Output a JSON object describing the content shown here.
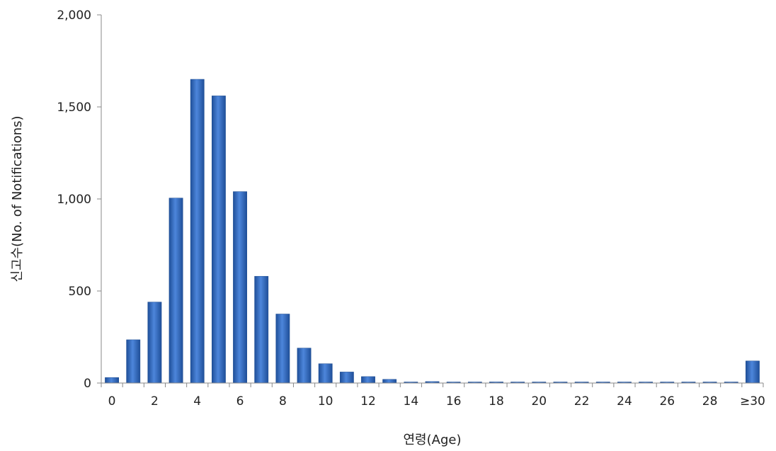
{
  "chart_data": {
    "type": "bar",
    "title": "",
    "xlabel": "연령(Age)",
    "ylabel": "신고수(No. of Notifications)",
    "ylim": [
      0,
      2000
    ],
    "yticks": [
      "0",
      "500",
      "1,000",
      "1,500",
      "2,000"
    ],
    "grid": false,
    "bar_color": "#3a73c9",
    "categories": [
      "0",
      "1",
      "2",
      "3",
      "4",
      "5",
      "6",
      "7",
      "8",
      "9",
      "10",
      "11",
      "12",
      "13",
      "14",
      "15",
      "16",
      "17",
      "18",
      "19",
      "20",
      "21",
      "22",
      "23",
      "24",
      "25",
      "26",
      "27",
      "28",
      "29",
      "≥30"
    ],
    "xtick_labels": [
      "0",
      "",
      "2",
      "",
      "4",
      "",
      "6",
      "",
      "8",
      "",
      "10",
      "",
      "12",
      "",
      "14",
      "",
      "16",
      "",
      "18",
      "",
      "20",
      "",
      "22",
      "",
      "24",
      "",
      "26",
      "",
      "28",
      "",
      "≥30"
    ],
    "values": [
      30,
      235,
      440,
      1005,
      1650,
      1560,
      1040,
      580,
      375,
      190,
      105,
      60,
      35,
      20,
      5,
      8,
      4,
      3,
      6,
      3,
      2,
      2,
      2,
      1,
      2,
      2,
      1,
      1,
      1,
      1,
      120
    ]
  }
}
